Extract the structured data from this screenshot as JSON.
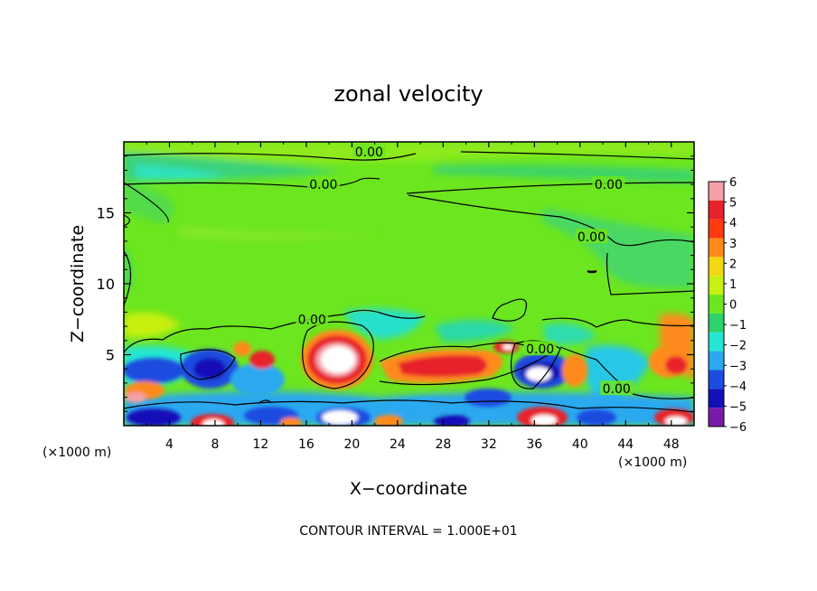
{
  "chart_data": {
    "type": "heatmap",
    "title": "zonal velocity",
    "xlabel": "X−coordinate",
    "ylabel": "Z−coordinate",
    "x_unit_left": "(×1000 m)",
    "x_unit_right": "(×1000 m)",
    "footer": "CONTOUR INTERVAL = 1.000E+01",
    "xlim": [
      0,
      50
    ],
    "ylim": [
      0,
      20
    ],
    "x_ticks": [
      "4",
      "8",
      "12",
      "16",
      "20",
      "24",
      "28",
      "32",
      "36",
      "40",
      "44",
      "48"
    ],
    "x_tick_values": [
      4,
      8,
      12,
      16,
      20,
      24,
      28,
      32,
      36,
      40,
      44,
      48
    ],
    "y_ticks": [
      "5",
      "10",
      "15"
    ],
    "y_tick_values": [
      5,
      10,
      15
    ],
    "colorbar": {
      "labels": [
        "6",
        "5",
        "4",
        "3",
        "2",
        "1",
        "0",
        "−1",
        "−2",
        "−3",
        "−4",
        "−5",
        "−6"
      ],
      "values": [
        6,
        5,
        4,
        3,
        2,
        1,
        0,
        -1,
        -2,
        -3,
        -4,
        -5,
        -6
      ],
      "colors": [
        "#f4a0a8",
        "#e8222a",
        "#ff3a10",
        "#ff8a1a",
        "#f2d810",
        "#c8f010",
        "#6ce61e",
        "#2ed26a",
        "#24e6d4",
        "#2aa8f0",
        "#1c4ce0",
        "#1410b8",
        "#7a1aaa"
      ]
    },
    "contour_labels": [
      {
        "text": "0.00",
        "x": 21.5,
        "z": 19.3
      },
      {
        "text": "0.00",
        "x": 17.5,
        "z": 17.0
      },
      {
        "text": "0.00",
        "x": 42.5,
        "z": 17.0
      },
      {
        "text": "0.00",
        "x": 41.0,
        "z": 13.3
      },
      {
        "text": "0.00",
        "x": 16.5,
        "z": 7.5
      },
      {
        "text": "0.00",
        "x": 36.5,
        "z": 5.4
      },
      {
        "text": "0.00",
        "x": 43.2,
        "z": 2.6
      }
    ]
  }
}
